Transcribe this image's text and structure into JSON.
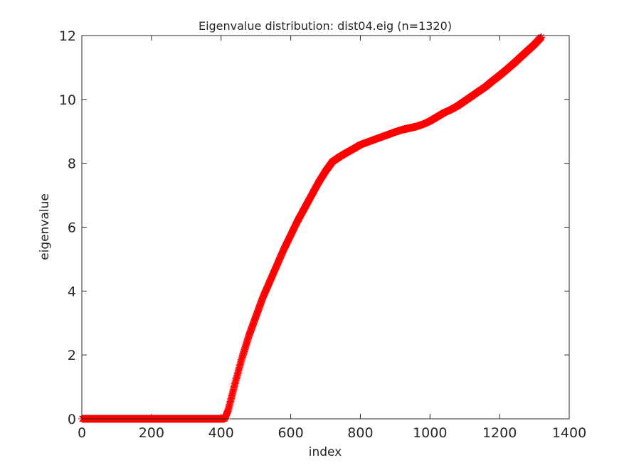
{
  "chart_data": {
    "type": "scatter",
    "title": "Eigenvalue distribution: dist04.eig (n=1320)",
    "xlabel": "index",
    "ylabel": "eigenvalue",
    "xlim": [
      0,
      1400
    ],
    "ylim": [
      0,
      12
    ],
    "xticks": [
      0,
      200,
      400,
      600,
      800,
      1000,
      1200,
      1400
    ],
    "yticks": [
      0,
      2,
      4,
      6,
      8,
      10,
      12
    ],
    "grid": false,
    "legend": "none",
    "marker": "asterisk",
    "n": 1320,
    "series": [
      {
        "color": "#ff0000",
        "x": [
          1,
          100,
          200,
          300,
          400,
          410,
          420,
          440,
          460,
          480,
          500,
          520,
          540,
          560,
          580,
          600,
          620,
          640,
          660,
          680,
          700,
          720,
          740,
          760,
          780,
          800,
          820,
          840,
          860,
          880,
          900,
          920,
          940,
          960,
          980,
          1000,
          1020,
          1040,
          1060,
          1080,
          1100,
          1120,
          1140,
          1160,
          1180,
          1200,
          1220,
          1240,
          1260,
          1280,
          1300,
          1320
        ],
        "values": [
          0.0,
          0.0,
          0.0,
          0.0,
          0.0,
          0.0,
          0.25,
          1.1,
          1.9,
          2.6,
          3.2,
          3.8,
          4.3,
          4.8,
          5.3,
          5.75,
          6.2,
          6.6,
          7.0,
          7.4,
          7.75,
          8.05,
          8.2,
          8.33,
          8.45,
          8.58,
          8.66,
          8.74,
          8.82,
          8.9,
          8.98,
          9.05,
          9.1,
          9.15,
          9.22,
          9.32,
          9.45,
          9.58,
          9.68,
          9.8,
          9.95,
          10.1,
          10.25,
          10.4,
          10.58,
          10.75,
          10.93,
          11.12,
          11.32,
          11.52,
          11.72,
          11.95
        ]
      }
    ]
  }
}
